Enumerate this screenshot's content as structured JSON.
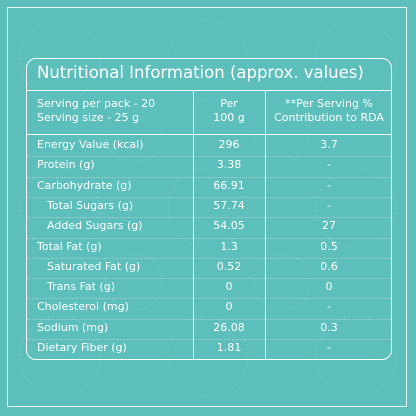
{
  "title": "Nutritional Information (approx. values)",
  "header": {
    "serving": [
      "Serving  per pack - 20",
      "Serving size - 25 g"
    ],
    "per": [
      "Per",
      "100 g"
    ],
    "rda": [
      "**Per Serving %",
      "Contribution to RDA"
    ]
  },
  "rows": [
    [
      "Energy Value (kcal)",
      296,
      3.7
    ],
    [
      "Protein (g)",
      3.38,
      "-"
    ],
    [
      "Carbohydrate (g)",
      66.91,
      "-"
    ],
    [
      "Total Sugars (g)",
      57.74,
      "-"
    ],
    [
      "Added Sugars (g)",
      54.05,
      27
    ],
    [
      "Total Fat (g)",
      1.3,
      0.5
    ],
    [
      "Saturated Fat (g)",
      0.52,
      0.6
    ],
    [
      "Trans Fat (g)",
      0,
      0
    ],
    [
      "Cholesterol (mg)",
      0,
      "-"
    ],
    [
      "Sodium (mg)",
      26.08,
      0.3
    ],
    [
      "Dietary Fiber (g)",
      1.81,
      "-"
    ]
  ]
}
